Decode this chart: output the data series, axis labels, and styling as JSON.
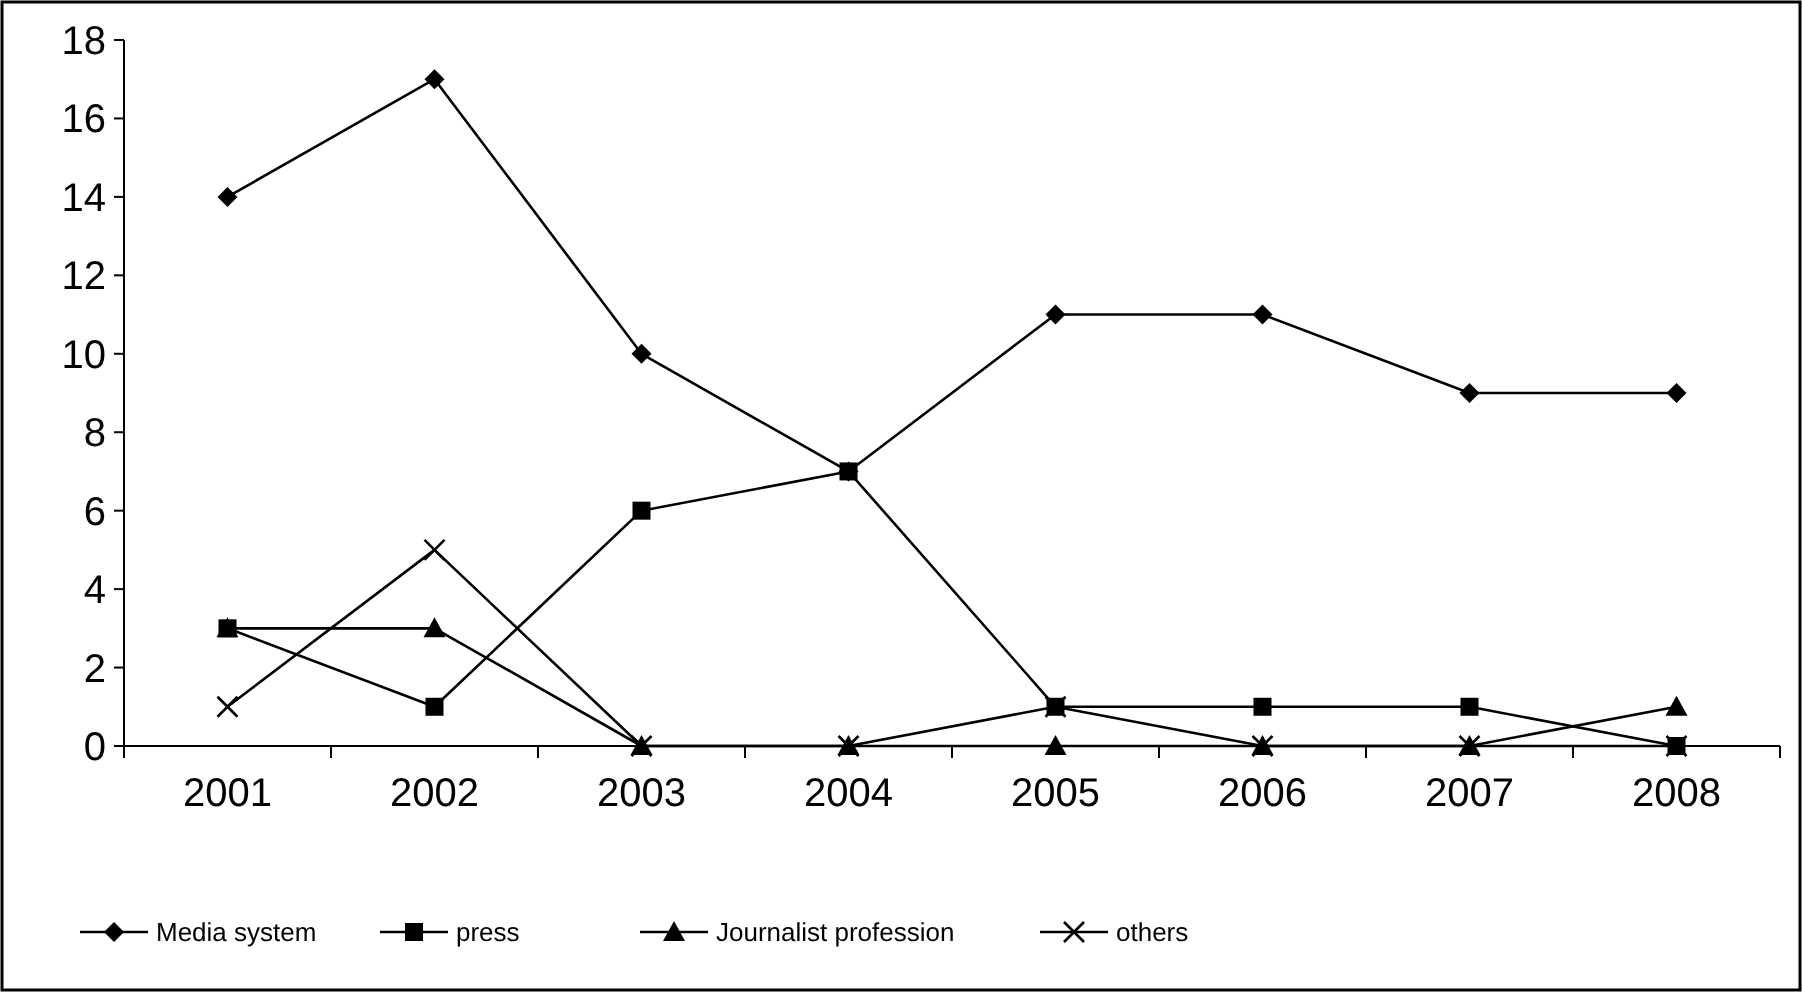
{
  "chart_data": {
    "type": "line",
    "categories": [
      "2001",
      "2002",
      "2003",
      "2004",
      "2005",
      "2006",
      "2007",
      "2008"
    ],
    "series": [
      {
        "name": "Media system",
        "color": "#000000",
        "marker": "diamond",
        "values": [
          14,
          17,
          10,
          7,
          11,
          11,
          9,
          9
        ]
      },
      {
        "name": "press",
        "color": "#000000",
        "marker": "square",
        "values": [
          3,
          1,
          6,
          7,
          1,
          1,
          1,
          0
        ]
      },
      {
        "name": "Journalist profession",
        "color": "#000000",
        "marker": "triangle",
        "values": [
          3,
          3,
          0,
          0,
          0,
          0,
          0,
          1
        ]
      },
      {
        "name": "others",
        "color": "#000000",
        "marker": "cross",
        "values": [
          1,
          5,
          0,
          0,
          1,
          0,
          0,
          0
        ]
      }
    ],
    "ylim": [
      0,
      18
    ],
    "yticks": [
      0,
      2,
      4,
      6,
      8,
      10,
      12,
      14,
      16,
      18
    ],
    "grid": false,
    "legend": "bottom",
    "line_style": "solid"
  }
}
